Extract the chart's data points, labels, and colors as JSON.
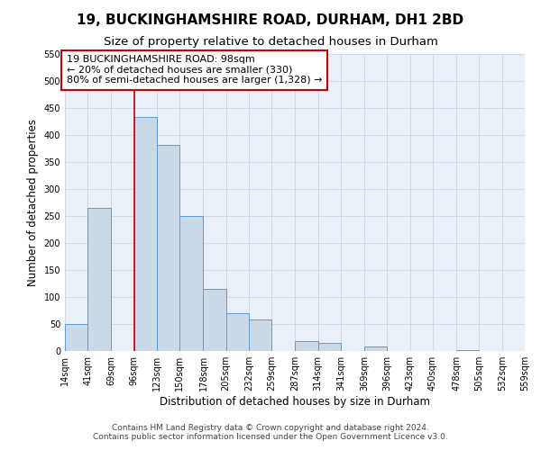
{
  "title": "19, BUCKINGHAMSHIRE ROAD, DURHAM, DH1 2BD",
  "subtitle": "Size of property relative to detached houses in Durham",
  "xlabel": "Distribution of detached houses by size in Durham",
  "ylabel": "Number of detached properties",
  "footer_lines": [
    "Contains HM Land Registry data © Crown copyright and database right 2024.",
    "Contains public sector information licensed under the Open Government Licence v3.0."
  ],
  "bar_left_edges": [
    14,
    41,
    69,
    96,
    123,
    150,
    178,
    205,
    232,
    259,
    287,
    314,
    341,
    369,
    396,
    423,
    450,
    478,
    505,
    532
  ],
  "bar_widths": [
    27,
    28,
    27,
    27,
    27,
    28,
    27,
    27,
    27,
    28,
    27,
    27,
    28,
    27,
    27,
    27,
    28,
    27,
    27,
    27
  ],
  "bar_heights": [
    50,
    265,
    0,
    433,
    382,
    250,
    115,
    70,
    58,
    0,
    18,
    15,
    0,
    8,
    0,
    0,
    0,
    2,
    0,
    0
  ],
  "bar_color": "#c9d9e8",
  "bar_edge_color": "#5b9bd5",
  "tick_labels": [
    "14sqm",
    "41sqm",
    "69sqm",
    "96sqm",
    "123sqm",
    "150sqm",
    "178sqm",
    "205sqm",
    "232sqm",
    "259sqm",
    "287sqm",
    "314sqm",
    "341sqm",
    "369sqm",
    "396sqm",
    "423sqm",
    "450sqm",
    "478sqm",
    "505sqm",
    "532sqm",
    "559sqm"
  ],
  "ylim": [
    0,
    550
  ],
  "yticks": [
    0,
    50,
    100,
    150,
    200,
    250,
    300,
    350,
    400,
    450,
    500,
    550
  ],
  "property_line_x": 96,
  "annotation_box_text": "19 BUCKINGHAMSHIRE ROAD: 98sqm\n← 20% of detached houses are smaller (330)\n80% of semi-detached houses are larger (1,328) →",
  "annotation_box_color": "#ffffff",
  "annotation_box_edge_color": "#cc0000",
  "grid_color": "#d0d8e4",
  "background_color": "#ffffff",
  "title_fontsize": 11,
  "subtitle_fontsize": 9.5,
  "axis_label_fontsize": 8.5,
  "tick_fontsize": 7,
  "annotation_fontsize": 8,
  "footer_fontsize": 6.5,
  "xlim_left": 14,
  "xlim_right": 559
}
